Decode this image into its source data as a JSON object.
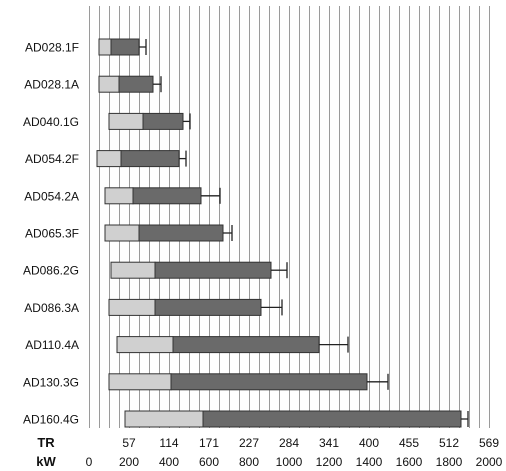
{
  "chart_data": {
    "type": "bar",
    "orientation": "horizontal",
    "stacked": true,
    "categories": [
      "AD028.1F",
      "AD028.1A",
      "AD040.1G",
      "AD054.2F",
      "AD054.2A",
      "AD065.3F",
      "AD086.2G",
      "AD086.3A",
      "AD110.4A",
      "AD130.3G",
      "AD160.4G"
    ],
    "series": [
      {
        "color": "#d0d0d0",
        "start": [
          50,
          50,
          100,
          40,
          80,
          80,
          110,
          100,
          140,
          100,
          180
        ],
        "end": [
          110,
          150,
          270,
          160,
          220,
          250,
          330,
          330,
          420,
          410,
          570
        ]
      },
      {
        "color": "#6a6a6a",
        "start": [
          110,
          150,
          270,
          160,
          220,
          250,
          330,
          330,
          420,
          410,
          570
        ],
        "end": [
          250,
          320,
          470,
          450,
          560,
          670,
          910,
          860,
          1150,
          1390,
          1860
        ]
      }
    ],
    "error_max": [
      285,
      360,
      505,
      485,
      655,
      715,
      990,
      965,
      1295,
      1495,
      1895
    ],
    "x_axes": [
      {
        "label": "TR",
        "ticks": [
          "57",
          "114",
          "171",
          "227",
          "284",
          "341",
          "400",
          "455",
          "512",
          "569"
        ]
      },
      {
        "label": "kW",
        "ticks": [
          "0",
          "200",
          "400",
          "600",
          "800",
          "1000",
          "1200",
          "1400",
          "1600",
          "1800",
          "2000"
        ]
      }
    ],
    "xlim": [
      0,
      2000
    ],
    "grid_step": 50,
    "grid": true
  }
}
